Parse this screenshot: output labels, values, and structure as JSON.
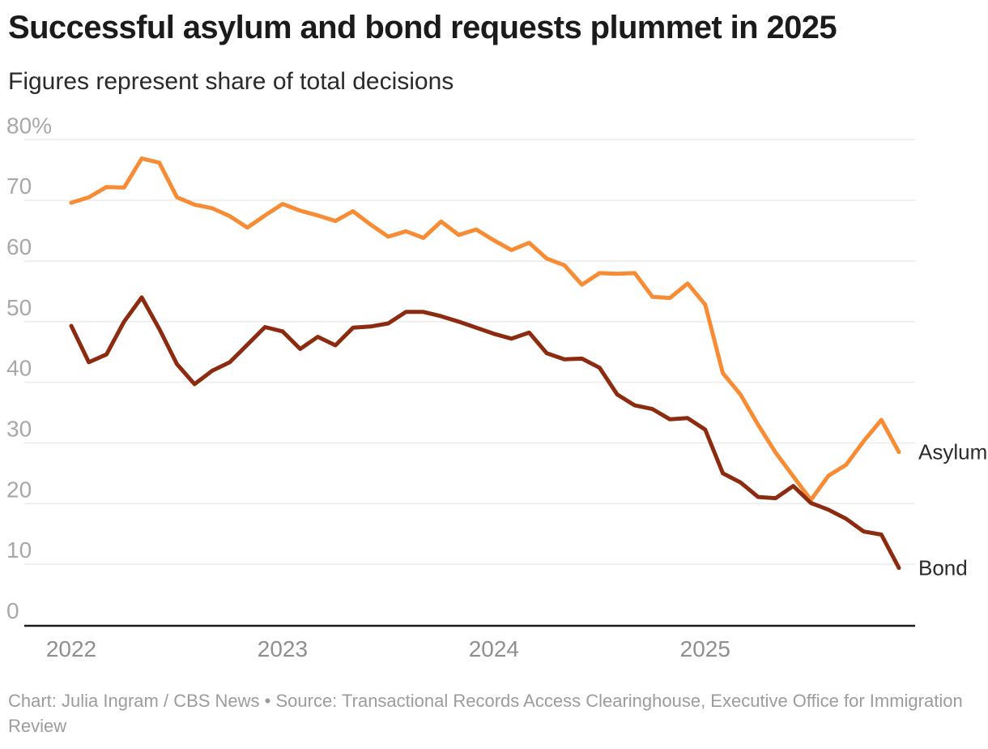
{
  "page": {
    "background": "#ffffff"
  },
  "header": {
    "title": "Successful asylum and bond requests plummet in 2025",
    "subtitle": "Figures represent share of total decisions"
  },
  "footer": {
    "text": "Chart: Julia Ingram / CBS News • Source: Transactional Records Access Clearinghouse, Executive Office for Immigration Review"
  },
  "style": {
    "grid_color": "#ebebeb",
    "axis_color": "#1a1a1a",
    "y_tick_color": "#a8a8a8",
    "x_tick_color": "#8f8f8f",
    "series_label_color": "#2b2b2b"
  },
  "chart_data": {
    "type": "line",
    "title": "Successful asylum and bond requests plummet in 2025",
    "subtitle": "Figures represent share of total decisions",
    "unit": "percent share of total decisions",
    "grid": "horizontal",
    "legend_position": "end-of-line labels at right",
    "x": [
      "2022-01",
      "2022-02",
      "2022-03",
      "2022-04",
      "2022-05",
      "2022-06",
      "2022-07",
      "2022-08",
      "2022-09",
      "2022-10",
      "2022-11",
      "2022-12",
      "2023-01",
      "2023-02",
      "2023-03",
      "2023-04",
      "2023-05",
      "2023-06",
      "2023-07",
      "2023-08",
      "2023-09",
      "2023-10",
      "2023-11",
      "2023-12",
      "2024-01",
      "2024-02",
      "2024-03",
      "2024-04",
      "2024-05",
      "2024-06",
      "2024-07",
      "2024-08",
      "2024-09",
      "2024-10",
      "2024-11",
      "2024-12",
      "2025-01",
      "2025-02",
      "2025-03",
      "2025-04",
      "2025-05",
      "2025-06",
      "2025-07",
      "2025-08",
      "2025-09",
      "2025-10",
      "2025-11",
      "2025-12"
    ],
    "x_axis": {
      "tick_labels": [
        "2022",
        "2023",
        "2024",
        "2025"
      ],
      "tick_month_indices": [
        0,
        12,
        24,
        36
      ]
    },
    "y_axis": {
      "range": [
        0,
        80
      ],
      "tick_values": [
        80,
        70,
        60,
        50,
        40,
        30,
        20,
        10,
        0
      ],
      "tick_labels": [
        "80%",
        "70",
        "60",
        "50",
        "40",
        "30",
        "20",
        "10",
        "0"
      ]
    },
    "series": [
      {
        "name": "Asylum",
        "color": "#f78c35",
        "values": [
          69.6,
          70.5,
          72.2,
          72.1,
          76.9,
          76.2,
          70.5,
          69.3,
          68.7,
          67.4,
          65.5,
          67.5,
          69.4,
          68.3,
          67.5,
          66.6,
          68.2,
          66.0,
          64.0,
          64.9,
          63.8,
          66.5,
          64.3,
          65.2,
          63.4,
          61.8,
          63.0,
          60.4,
          59.3,
          56.1,
          58.0,
          57.9,
          58.0,
          54.1,
          53.9,
          56.3,
          52.8,
          41.5,
          38.0,
          33.0,
          28.4,
          24.5,
          20.6,
          24.6,
          26.4,
          30.3,
          33.8,
          28.5
        ]
      },
      {
        "name": "Bond",
        "color": "#8c2b10",
        "values": [
          49.3,
          43.3,
          44.6,
          50.0,
          54.0,
          48.8,
          43.0,
          39.7,
          41.9,
          43.3,
          46.2,
          49.1,
          48.4,
          45.5,
          47.5,
          46.1,
          49.0,
          49.2,
          49.7,
          51.6,
          51.6,
          50.9,
          50.0,
          49.0,
          48.0,
          47.2,
          48.2,
          44.8,
          43.8,
          43.9,
          42.4,
          38.0,
          36.2,
          35.6,
          33.9,
          34.1,
          32.2,
          25.0,
          23.5,
          21.1,
          20.9,
          22.9,
          20.1,
          19.0,
          17.5,
          15.4,
          14.9,
          9.4
        ]
      }
    ]
  }
}
